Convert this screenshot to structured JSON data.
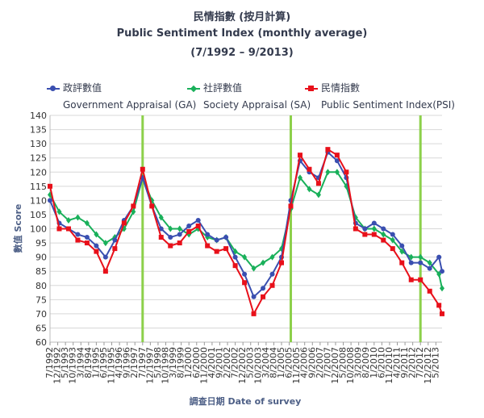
{
  "titles": {
    "zh": "民情指數 (按月計算)",
    "en": "Public Sentiment Index (monthly average)",
    "period": "(7/1992 – 9/2013)"
  },
  "legend": [
    {
      "key": "ga",
      "zh": "政評數值",
      "en": "Government Appraisal (GA)",
      "color": "#3a4fb0"
    },
    {
      "key": "sa",
      "zh": "社評數值",
      "en": "Society Appraisal (SA)",
      "color": "#19b05a"
    },
    {
      "key": "psi",
      "zh": "民情指數",
      "en": "Public Sentiment Index(PSI)",
      "color": "#e8101a"
    }
  ],
  "chart_data": {
    "type": "line",
    "ylabel": "數值 Score",
    "xlabel": "調查日期 Date of survey",
    "ylim": [
      60,
      140
    ],
    "yticks": [
      60,
      65,
      70,
      75,
      80,
      85,
      90,
      95,
      100,
      105,
      110,
      115,
      120,
      125,
      130,
      135,
      140
    ],
    "xticks": [
      "7/1992",
      "12/1992",
      "5/1993",
      "10/1993",
      "3/1994",
      "8/1994",
      "1/1995",
      "6/1995",
      "11/1995",
      "4/1996",
      "9/1996",
      "2/1997",
      "7/1997",
      "12/1997",
      "5/1998",
      "10/1998",
      "3/1999",
      "8/1999",
      "1/2000",
      "6/2000",
      "11/2000",
      "4/2001",
      "9/2001",
      "2/2002",
      "7/2002",
      "12/2002",
      "5/2003",
      "10/2003",
      "3/2004",
      "8/2004",
      "1/2005",
      "6/2005",
      "11/2005",
      "4/2006",
      "9/2006",
      "2/2007",
      "7/2007",
      "12/2007",
      "5/2008",
      "10/2008",
      "3/2009",
      "8/2009",
      "1/2010",
      "6/2010",
      "11/2010",
      "4/2011",
      "9/2011",
      "2/2012",
      "7/2012",
      "12/2012",
      "5/2013"
    ],
    "vertical_markers": [
      "7/1997",
      "7/2005",
      "7/2012"
    ],
    "marker_color": "#8cd04a",
    "grid": true,
    "series_points": {
      "x": [
        "7/1992",
        "1/1993",
        "7/1993",
        "1/1994",
        "7/1994",
        "1/1995",
        "7/1995",
        "1/1996",
        "7/1996",
        "1/1997",
        "7/1997",
        "1/1998",
        "7/1998",
        "1/1999",
        "7/1999",
        "1/2000",
        "7/2000",
        "1/2001",
        "7/2001",
        "1/2002",
        "7/2002",
        "1/2003",
        "7/2003",
        "1/2004",
        "7/2004",
        "1/2005",
        "7/2005",
        "1/2006",
        "7/2006",
        "1/2007",
        "7/2007",
        "1/2008",
        "7/2008",
        "1/2009",
        "7/2009",
        "1/2010",
        "7/2010",
        "1/2011",
        "7/2011",
        "1/2012",
        "7/2012",
        "1/2013",
        "7/2013",
        "9/2013"
      ],
      "GA": [
        110,
        102,
        100,
        98,
        97,
        94,
        90,
        96,
        103,
        108,
        118,
        108,
        100,
        97,
        98,
        101,
        103,
        98,
        96,
        97,
        90,
        84,
        76,
        79,
        84,
        90,
        110,
        124,
        120,
        118,
        127,
        124,
        118,
        102,
        100,
        102,
        100,
        98,
        94,
        88,
        88,
        86,
        90,
        85
      ],
      "SA": [
        112,
        106,
        103,
        104,
        102,
        98,
        95,
        97,
        100,
        106,
        118,
        110,
        104,
        100,
        100,
        98,
        100,
        97,
        96,
        97,
        92,
        90,
        86,
        88,
        90,
        93,
        107,
        118,
        114,
        112,
        120,
        120,
        115,
        104,
        100,
        100,
        98,
        96,
        92,
        90,
        90,
        88,
        84,
        79
      ],
      "PSI": [
        115,
        100,
        100,
        96,
        95,
        92,
        85,
        93,
        102,
        108,
        121,
        108,
        97,
        94,
        95,
        99,
        101,
        94,
        92,
        93,
        87,
        81,
        70,
        76,
        80,
        88,
        108,
        126,
        121,
        116,
        128,
        126,
        120,
        100,
        98,
        98,
        96,
        93,
        88,
        82,
        82,
        78,
        73,
        70
      ]
    }
  }
}
